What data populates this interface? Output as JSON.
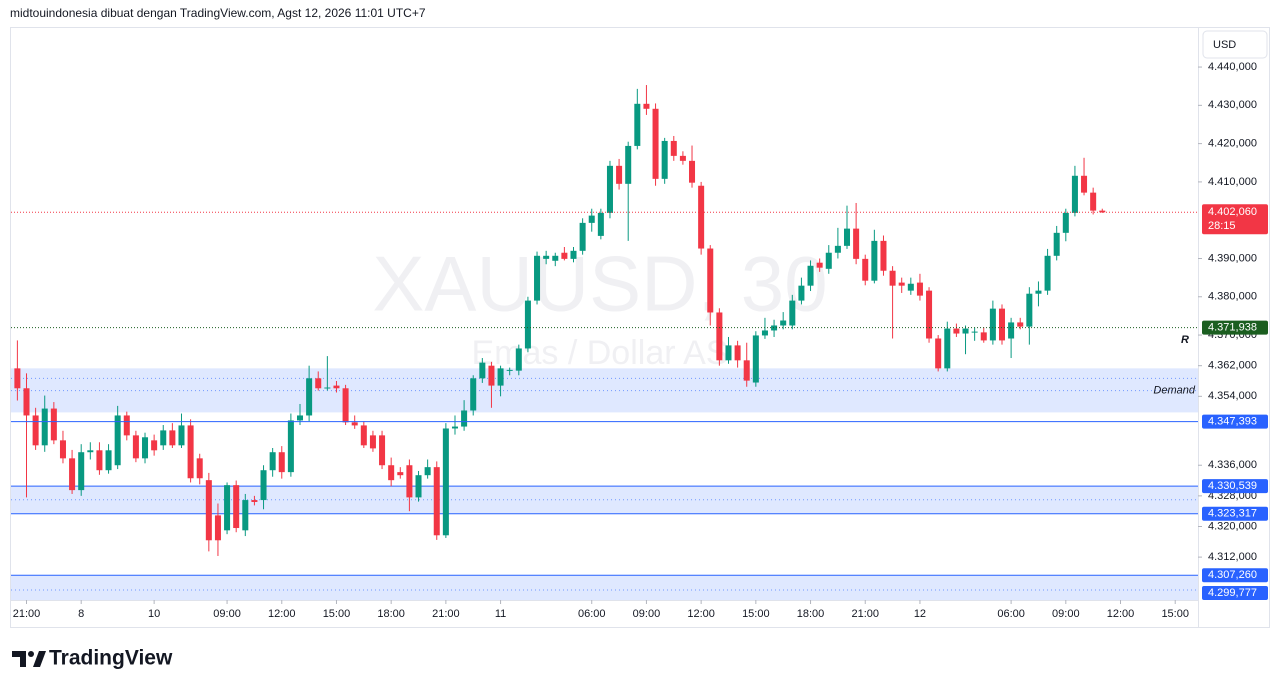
{
  "header": "midtouindonesia dibuat dengan TradingView.com, Agst 12, 2026 11:01 UTC+7",
  "logo": "TradingView",
  "chart_data": {
    "type": "candlestick",
    "symbol_watermark": "XAUUSD, 30",
    "description_watermark": "Emas / Dollar AS",
    "currency": "USD",
    "up_color": "#089981",
    "down_color": "#f23645",
    "open": [
      4361.3,
      4356.1,
      4349.0,
      4341.2,
      4350.8,
      4342.5,
      4337.8,
      4329.5,
      4339.4,
      4339.9,
      4334.7,
      4336.0,
      4349.0,
      4343.8,
      4337.8,
      4342.5,
      4341.2,
      4345.1,
      4341.2,
      4346.4,
      4337.8,
      4332.1,
      4322.9,
      4319.0,
      4330.8,
      4319.0,
      4326.9,
      4326.9,
      4334.7,
      4339.4,
      4334.2,
      4347.7,
      4349.0,
      4358.7,
      4356.1,
      4356.8,
      4356.1,
      4347.2,
      4346.4,
      4343.8,
      4343.8,
      4336.0,
      4334.2,
      4336.0,
      4327.6,
      4333.4,
      4335.5,
      4317.7,
      4345.6,
      4346.1,
      4350.3,
      4358.7,
      4362.0,
      4356.8,
      4360.7,
      4360.7,
      4366.5,
      4379.0,
      4389.9,
      4389.4,
      4391.5,
      4389.9,
      4392.0,
      4399.3,
      4395.9,
      4401.9,
      4414.2,
      4409.5,
      4419.4,
      4430.4,
      4429.1,
      4410.8,
      4420.7,
      4416.8,
      4415.5,
      4409.0,
      4392.6,
      4375.9,
      4363.4,
      4367.3,
      4363.4,
      4357.6,
      4369.9,
      4371.2,
      4372.5,
      4372.5,
      4379.0,
      4382.9,
      4388.9,
      4387.3,
      4391.5,
      4393.3,
      4397.8,
      4389.9,
      4384.2,
      4394.6,
      4386.8,
      4383.7,
      4381.6,
      4383.7,
      4381.6,
      4369.1,
      4361.3,
      4371.7,
      4370.4,
      4370.7,
      4370.7,
      4368.6,
      4376.9,
      4369.1,
      4373.3,
      4372.2,
      4380.8,
      4381.6,
      4390.7,
      4396.7,
      4401.9,
      4411.6,
      4407.2,
      4402.5
    ],
    "high": [
      4368.6,
      4360,
      4351,
      4354.2,
      4352.5,
      4345,
      4340,
      4341.5,
      4342,
      4342,
      4341.5,
      4351.5,
      4350,
      4345,
      4344.5,
      4344,
      4346.5,
      4347,
      4349.5,
      4348,
      4339,
      4334,
      4326,
      4331.5,
      4332,
      4328.5,
      4328,
      4336,
      4340.5,
      4341,
      4349.5,
      4352,
      4362,
      4360.5,
      4364.5,
      4358,
      4357,
      4349,
      4347.5,
      4345,
      4345,
      4338,
      4335.5,
      4337.5,
      4334.5,
      4337.5,
      4337,
      4347,
      4349,
      4353,
      4359.5,
      4364,
      4363,
      4362,
      4361.5,
      4367.5,
      4380,
      4391.8,
      4392,
      4391.5,
      4393,
      4393,
      4400.5,
      4403,
      4403,
      4415.5,
      4416,
      4420.5,
      4434.3,
      4435.3,
      4430.5,
      4421.5,
      4422,
      4418,
      4419.5,
      4410,
      4393.5,
      4377,
      4369.5,
      4368.5,
      4368,
      4371,
      4374.5,
      4374,
      4376,
      4380.5,
      4385,
      4389.5,
      4390,
      4393.5,
      4398,
      4403.8,
      4404.5,
      4391,
      4397.5,
      4396,
      4388,
      4385,
      4385,
      4386,
      4382.5,
      4370,
      4373.5,
      4373,
      4372.5,
      4372,
      4372,
      4379,
      4378,
      4374.5,
      4374.5,
      4382.5,
      4384,
      4392.5,
      4398.5,
      4403,
      4414.2,
      4416.3,
      4408.5,
      4403
    ],
    "low": [
      4352.9,
      4327.6,
      4340,
      4339.5,
      4341.5,
      4336.5,
      4328.5,
      4328,
      4337.5,
      4333.5,
      4333.8,
      4335,
      4342.5,
      4336.8,
      4336.5,
      4338.5,
      4340,
      4340.5,
      4340.5,
      4331.5,
      4331,
      4313.5,
      4312.3,
      4318,
      4318.5,
      4317.5,
      4325.5,
      4324.5,
      4333,
      4332.5,
      4333,
      4346.5,
      4347.5,
      4355.5,
      4355.5,
      4355,
      4346.5,
      4345.5,
      4340.5,
      4339.5,
      4335,
      4330.5,
      4332.5,
      4324,
      4326.5,
      4332.5,
      4316.5,
      4317,
      4344,
      4345,
      4349,
      4357.5,
      4351,
      4354,
      4359.5,
      4359.5,
      4365.5,
      4378,
      4388.5,
      4388,
      4389.5,
      4389,
      4391,
      4397,
      4395,
      4400.5,
      4408,
      4394.6,
      4418.5,
      4427.5,
      4409,
      4409.5,
      4415.5,
      4414.5,
      4408.5,
      4391,
      4372.5,
      4362,
      4362.5,
      4361.5,
      4356.5,
      4356.5,
      4369,
      4369.5,
      4371.5,
      4371.5,
      4378,
      4381.5,
      4386.5,
      4386,
      4390,
      4392.5,
      4388.5,
      4383,
      4383.5,
      4385.5,
      4369.1,
      4381,
      4380.5,
      4379,
      4368,
      4360.5,
      4360.5,
      4369.5,
      4365,
      4368.5,
      4368,
      4367.5,
      4367.5,
      4364,
      4371.5,
      4367.5,
      4377.5,
      4380.5,
      4389.5,
      4394.5,
      4401,
      4406.5,
      4401.5,
      4401.9
    ],
    "close": [
      4356.1,
      4349.0,
      4341.2,
      4350.8,
      4342.5,
      4337.8,
      4329.5,
      4339.4,
      4339.9,
      4334.7,
      4339.9,
      4349.0,
      4343.8,
      4337.8,
      4343.3,
      4339.9,
      4345.1,
      4341.2,
      4346.4,
      4332.6,
      4332.6,
      4316.4,
      4316.4,
      4330.8,
      4319.6,
      4326.9,
      4326.4,
      4334.7,
      4339.4,
      4334.2,
      4347.7,
      4349.0,
      4358.7,
      4356.1,
      4356.3,
      4356.1,
      4347.2,
      4346.4,
      4341.2,
      4340.4,
      4336.0,
      4332.1,
      4333.4,
      4327.6,
      4333.4,
      4335.5,
      4317.7,
      4345.6,
      4346.1,
      4350.3,
      4358.7,
      4362.8,
      4356.8,
      4361.3,
      4360.9,
      4366.5,
      4379.0,
      4390.7,
      4390.7,
      4390.7,
      4389.9,
      4392.0,
      4399.3,
      4401.2,
      4401.9,
      4414.2,
      4409.5,
      4419.4,
      4430.4,
      4429.1,
      4410.8,
      4420.7,
      4416.8,
      4415.5,
      4409.8,
      4392.6,
      4375.9,
      4363.4,
      4367.3,
      4363.4,
      4358.1,
      4369.9,
      4371.2,
      4372.5,
      4373.8,
      4379.0,
      4382.9,
      4388.1,
      4387.6,
      4391.5,
      4393.3,
      4397.8,
      4389.9,
      4384.2,
      4394.6,
      4386.8,
      4382.9,
      4382.9,
      4383.4,
      4380.3,
      4369.1,
      4361.3,
      4371.7,
      4370.4,
      4371.7,
      4370.9,
      4368.6,
      4376.9,
      4368.6,
      4373.3,
      4372.2,
      4380.8,
      4381.6,
      4390.7,
      4396.7,
      4401.9,
      4411.6,
      4407.2,
      4402.5,
      4402.06
    ],
    "xlim": [
      -0.7,
      129.5
    ],
    "xticks": [
      {
        "value": 1,
        "label": "21:00"
      },
      {
        "value": 7,
        "label": "8"
      },
      {
        "value": 15,
        "label": "10"
      },
      {
        "value": 23,
        "label": "09:00"
      },
      {
        "value": 29,
        "label": "12:00"
      },
      {
        "value": 35,
        "label": "15:00"
      },
      {
        "value": 41,
        "label": "18:00"
      },
      {
        "value": 47,
        "label": "21:00"
      },
      {
        "value": 53,
        "label": "11"
      },
      {
        "value": 63,
        "label": "06:00"
      },
      {
        "value": 69,
        "label": "09:00"
      },
      {
        "value": 75,
        "label": "12:00"
      },
      {
        "value": 81,
        "label": "15:00"
      },
      {
        "value": 87,
        "label": "18:00"
      },
      {
        "value": 93,
        "label": "21:00"
      },
      {
        "value": 99,
        "label": "12"
      },
      {
        "value": 109,
        "label": "06:00"
      },
      {
        "value": 115,
        "label": "09:00"
      },
      {
        "value": 121,
        "label": "12:00"
      },
      {
        "value": 127,
        "label": "15:00"
      }
    ],
    "ylim": [
      4300.8,
      4450.2
    ],
    "yticks": [
      {
        "value": 4440,
        "label": "4.440,000"
      },
      {
        "value": 4430,
        "label": "4.430,000"
      },
      {
        "value": 4420,
        "label": "4.420,000"
      },
      {
        "value": 4410,
        "label": "4.410,000"
      },
      {
        "value": 4390,
        "label": "4.390,000"
      },
      {
        "value": 4380,
        "label": "4.380,000"
      },
      {
        "value": 4370,
        "label": "4.370,000"
      },
      {
        "value": 4362,
        "label": "4.362,000"
      },
      {
        "value": 4354,
        "label": "4.354,000"
      },
      {
        "value": 4336,
        "label": "4.336,000"
      },
      {
        "value": 4328,
        "label": "4.328,000"
      },
      {
        "value": 4320,
        "label": "4.320,000"
      },
      {
        "value": 4312,
        "label": "4.312,000"
      }
    ],
    "zones": [
      {
        "top": 4361.3,
        "bottom": 4349.8,
        "label": "Demand",
        "midlines": [
          4358.7,
          4355.5
        ],
        "border": false
      },
      {
        "top": {
          "value": 4330.539,
          "label": "4.330,539"
        },
        "bottom": {
          "value": 4323.317,
          "label": "4.323,317"
        },
        "midlines": [
          4327.0
        ],
        "border": true
      },
      {
        "top": {
          "value": 4307.26,
          "label": "4.307,260"
        },
        "bottom": {
          "value": 4299.777,
          "label": "4.299,777"
        },
        "midlines": [
          4303.4
        ],
        "border": true
      }
    ],
    "price_lines": [
      {
        "value": 4402.06,
        "label": "4.402,060",
        "countdown": "28:15",
        "color": "#f23645",
        "style": "dotted"
      },
      {
        "value": 4371.938,
        "label": "4.371,938",
        "color": "#1b5e20",
        "style": "dotted"
      },
      {
        "value": 4347.393,
        "label": "4.347,393",
        "color": "#2962ff",
        "style": "solid"
      }
    ],
    "annotation": "R"
  }
}
